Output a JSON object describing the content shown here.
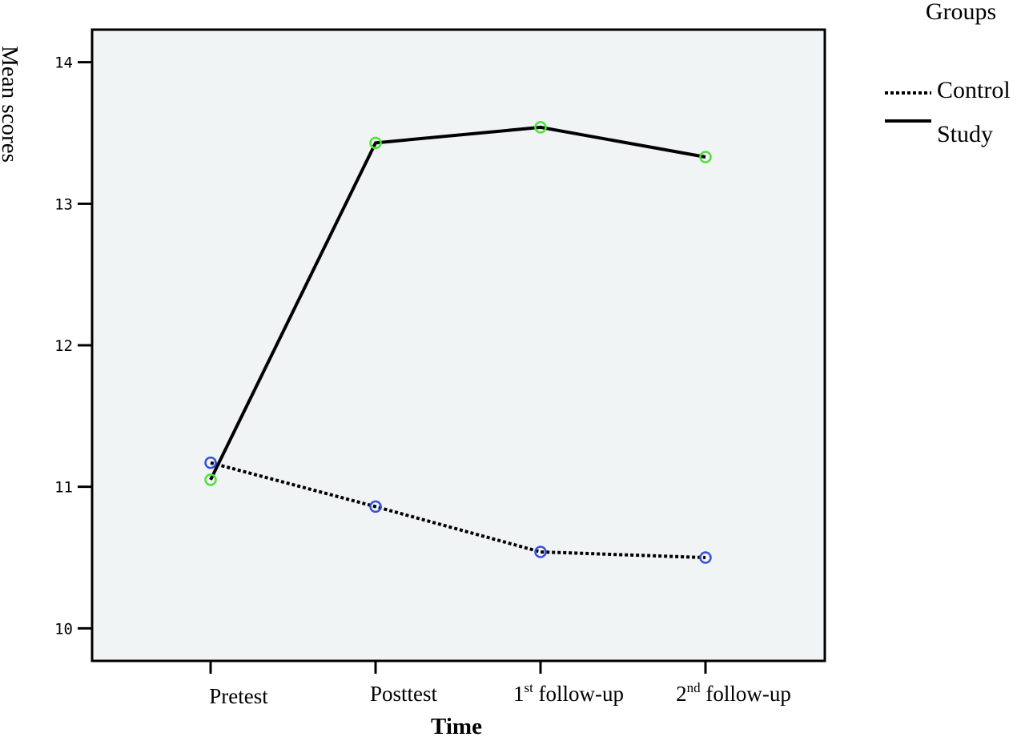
{
  "chart_data": {
    "type": "line",
    "xlabel": "Time",
    "ylabel": "Mean scores",
    "categories": [
      {
        "base": "Pretest",
        "sup": "",
        "rest": ""
      },
      {
        "base": "Posttest",
        "sup": "",
        "rest": ""
      },
      {
        "base": "1",
        "sup": "st",
        "rest": " follow-up"
      },
      {
        "base": "2",
        "sup": "nd",
        "rest": " follow-up"
      }
    ],
    "ylim": [
      9.77,
      14.23
    ],
    "yticks": [
      "10",
      "11",
      "12",
      "13",
      "14"
    ],
    "grid": false,
    "legend": {
      "title": "Groups",
      "placement": "top-right, outside plot"
    },
    "series": [
      {
        "name": "Control",
        "values": [
          11.17,
          10.86,
          10.54,
          10.5
        ],
        "line_style": "dotted",
        "marker_color": "#3a4fd8"
      },
      {
        "name": "Study",
        "values": [
          11.05,
          13.43,
          13.54,
          13.33
        ],
        "line_style": "solid",
        "marker_color": "#4fe03a"
      }
    ]
  },
  "colors": {
    "plot_background": "#f0f4f4",
    "line": "#000000"
  }
}
